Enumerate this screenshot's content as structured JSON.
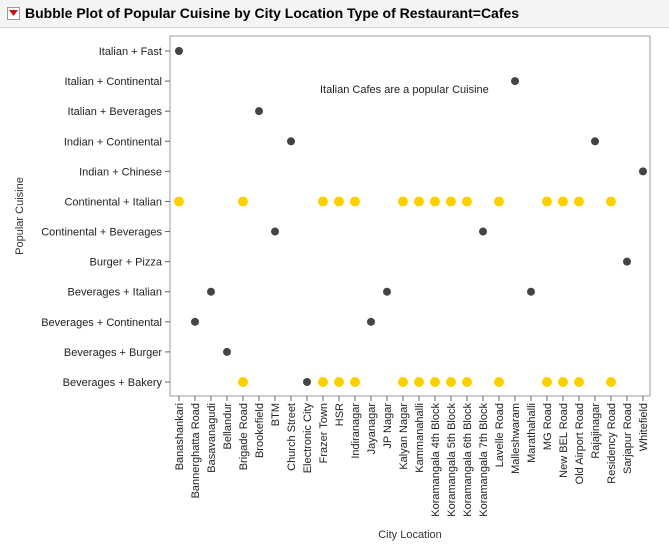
{
  "report": {
    "title": "Bubble Plot of Popular Cuisine by City Location Type of Restaurant=Cafes"
  },
  "colors": {
    "highlight": "#ffd000",
    "dark": "#444444",
    "frame": "#9c9c9c",
    "header_bg": "#f4f4f4",
    "red_toggle": "#cc1111"
  },
  "chart_data": {
    "type": "scatter",
    "title": "",
    "xlabel": "City Location",
    "ylabel": "Popular Cuisine",
    "x_categories": [
      "Banashankari",
      "Bannerghatta Road",
      "Basavanagudi",
      "Bellandur",
      "Brigade Road",
      "Brookefield",
      "BTM",
      "Church Street",
      "Electronic City",
      "Frazer Town",
      "HSR",
      "Indiranagar",
      "Jayanagar",
      "JP Nagar",
      "Kalyan Nagar",
      "Kammanahalli",
      "Koramangala 4th Block",
      "Koramangala 5th Block",
      "Koramangala 6th Block",
      "Koramangala 7th Block",
      "Lavelle Road",
      "Malleshwaram",
      "Marathahalli",
      "MG Road",
      "New BEL Road",
      "Old Airport Road",
      "Rajajinagar",
      "Residency Road",
      "Sarjapur Road",
      "Whitefield"
    ],
    "y_categories": [
      "Italian + Fast",
      "Italian + Continental",
      "Italian + Beverages",
      "Indian + Continental",
      "Indian + Chinese",
      "Continental + Italian",
      "Continental + Beverages",
      "Burger + Pizza",
      "Beverages + Italian",
      "Beverages + Continental",
      "Beverages + Burger",
      "Beverages + Bakery"
    ],
    "annotation": "Italian Cafes are a popular Cuisine",
    "grid": false,
    "dark_points": [
      {
        "x": "Banashankari",
        "y": "Italian + Fast"
      },
      {
        "x": "Bannerghatta Road",
        "y": "Beverages + Continental"
      },
      {
        "x": "Basavanagudi",
        "y": "Beverages + Italian"
      },
      {
        "x": "Bellandur",
        "y": "Beverages + Burger"
      },
      {
        "x": "Brookefield",
        "y": "Italian + Beverages"
      },
      {
        "x": "BTM",
        "y": "Continental + Beverages"
      },
      {
        "x": "Church Street",
        "y": "Indian + Continental"
      },
      {
        "x": "Electronic City",
        "y": "Beverages + Bakery"
      },
      {
        "x": "Jayanagar",
        "y": "Beverages + Continental"
      },
      {
        "x": "JP Nagar",
        "y": "Beverages + Italian"
      },
      {
        "x": "Koramangala 7th Block",
        "y": "Continental + Beverages"
      },
      {
        "x": "Malleshwaram",
        "y": "Italian + Continental"
      },
      {
        "x": "Marathahalli",
        "y": "Beverages + Italian"
      },
      {
        "x": "Rajajinagar",
        "y": "Indian + Continental"
      },
      {
        "x": "Sarjapur Road",
        "y": "Burger + Pizza"
      },
      {
        "x": "Whitefield",
        "y": "Indian + Chinese"
      }
    ],
    "highlight_points": [
      {
        "x": "Banashankari",
        "y": "Continental + Italian"
      },
      {
        "x": "Brigade Road",
        "y": "Continental + Italian"
      },
      {
        "x": "Frazer Town",
        "y": "Continental + Italian"
      },
      {
        "x": "HSR",
        "y": "Continental + Italian"
      },
      {
        "x": "Indiranagar",
        "y": "Continental + Italian"
      },
      {
        "x": "Kalyan Nagar",
        "y": "Continental + Italian"
      },
      {
        "x": "Kammanahalli",
        "y": "Continental + Italian"
      },
      {
        "x": "Koramangala 4th Block",
        "y": "Continental + Italian"
      },
      {
        "x": "Koramangala 5th Block",
        "y": "Continental + Italian"
      },
      {
        "x": "Koramangala 6th Block",
        "y": "Continental + Italian"
      },
      {
        "x": "Lavelle Road",
        "y": "Continental + Italian"
      },
      {
        "x": "MG Road",
        "y": "Continental + Italian"
      },
      {
        "x": "New BEL Road",
        "y": "Continental + Italian"
      },
      {
        "x": "Old Airport Road",
        "y": "Continental + Italian"
      },
      {
        "x": "Residency Road",
        "y": "Continental + Italian"
      },
      {
        "x": "Brigade Road",
        "y": "Beverages + Bakery"
      },
      {
        "x": "Frazer Town",
        "y": "Beverages + Bakery"
      },
      {
        "x": "HSR",
        "y": "Beverages + Bakery"
      },
      {
        "x": "Indiranagar",
        "y": "Beverages + Bakery"
      },
      {
        "x": "Kalyan Nagar",
        "y": "Beverages + Bakery"
      },
      {
        "x": "Kammanahalli",
        "y": "Beverages + Bakery"
      },
      {
        "x": "Koramangala 4th Block",
        "y": "Beverages + Bakery"
      },
      {
        "x": "Koramangala 5th Block",
        "y": "Beverages + Bakery"
      },
      {
        "x": "Koramangala 6th Block",
        "y": "Beverages + Bakery"
      },
      {
        "x": "Lavelle Road",
        "y": "Beverages + Bakery"
      },
      {
        "x": "MG Road",
        "y": "Beverages + Bakery"
      },
      {
        "x": "New BEL Road",
        "y": "Beverages + Bakery"
      },
      {
        "x": "Old Airport Road",
        "y": "Beverages + Bakery"
      },
      {
        "x": "Residency Road",
        "y": "Beverages + Bakery"
      }
    ]
  }
}
